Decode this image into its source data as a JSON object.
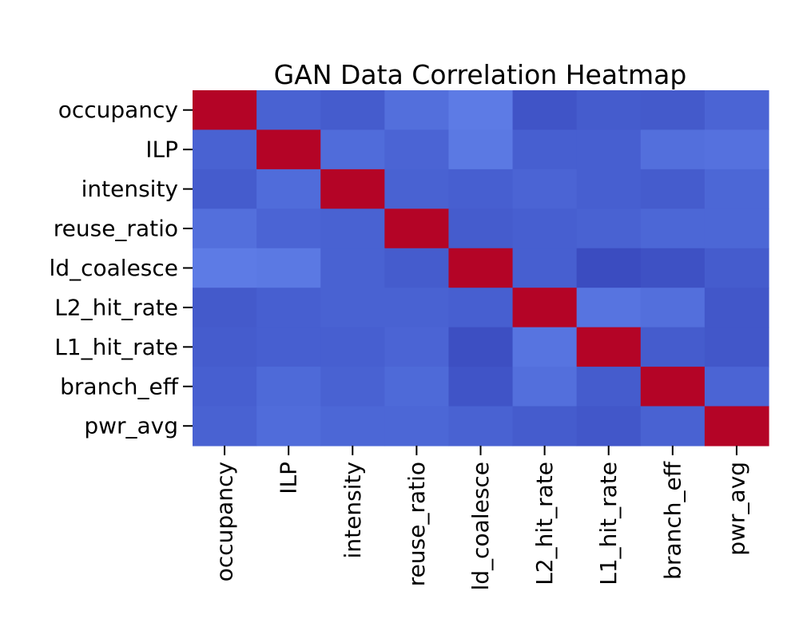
{
  "chart_data": {
    "type": "heatmap",
    "title": "GAN Data Correlation Heatmap",
    "xlabel": "",
    "ylabel": "",
    "variables": [
      "occupancy",
      "ILP",
      "intensity",
      "reuse_ratio",
      "ld_coalesce",
      "L2_hit_rate",
      "L1_hit_rate",
      "branch_eff",
      "pwr_avg"
    ],
    "values": [
      [
        1.0,
        0.05,
        0.03,
        0.1,
        0.15,
        0.0,
        0.03,
        0.02,
        0.06
      ],
      [
        0.05,
        1.0,
        0.09,
        0.06,
        0.14,
        0.04,
        0.04,
        0.1,
        0.11
      ],
      [
        0.03,
        0.09,
        1.0,
        0.05,
        0.04,
        0.06,
        0.04,
        0.03,
        0.07
      ],
      [
        0.1,
        0.06,
        0.05,
        1.0,
        0.03,
        0.04,
        0.05,
        0.07,
        0.07
      ],
      [
        0.15,
        0.14,
        0.05,
        0.03,
        1.0,
        0.04,
        -0.03,
        -0.01,
        0.03
      ],
      [
        0.02,
        0.04,
        0.05,
        0.05,
        0.04,
        1.0,
        0.12,
        0.1,
        0.01
      ],
      [
        0.03,
        0.04,
        0.04,
        0.06,
        -0.02,
        0.12,
        1.0,
        0.03,
        0.01
      ],
      [
        0.04,
        0.08,
        0.05,
        0.08,
        0.0,
        0.1,
        0.03,
        1.0,
        0.06
      ],
      [
        0.05,
        0.09,
        0.07,
        0.07,
        0.05,
        0.03,
        0.01,
        0.05,
        1.0
      ]
    ],
    "colormap": "coolwarm",
    "vmin": -0.03,
    "vmax": 1.0,
    "colors": {
      "low": "#3b4cc0",
      "mid": "#dddcdc",
      "high": "#b40426"
    },
    "colorbar": false
  }
}
